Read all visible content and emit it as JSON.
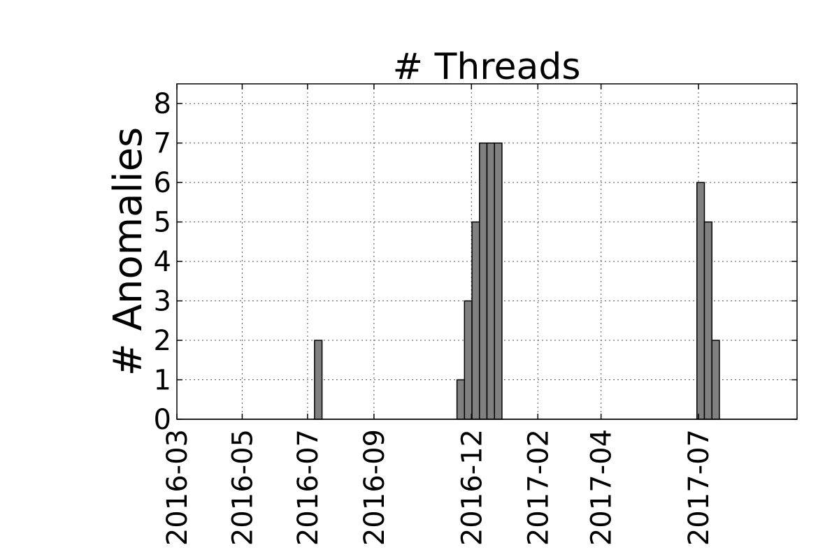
{
  "chart_data": {
    "type": "bar",
    "title": "# Threads",
    "xlabel": "",
    "ylabel": "# Anomalies",
    "xlim": [
      "2016-03-01",
      "2017-10-01"
    ],
    "ylim": [
      0,
      8.5
    ],
    "yticks": [
      0,
      1,
      2,
      3,
      4,
      5,
      6,
      7,
      8
    ],
    "xticks": [
      "2016-03",
      "2016-05",
      "2016-07",
      "2016-09",
      "2016-12",
      "2017-02",
      "2017-04",
      "2017-07"
    ],
    "grid": true,
    "bar_color": "#808080",
    "bar_width_days": 7,
    "series": [
      {
        "x": [
          "2016-07-11",
          "2016-11-21",
          "2016-11-28",
          "2016-12-05",
          "2016-12-12",
          "2016-12-19",
          "2016-12-26",
          "2017-07-03",
          "2017-07-10",
          "2017-07-17"
        ],
        "values": [
          2,
          1,
          3,
          5,
          7,
          7,
          7,
          6,
          5,
          2
        ]
      }
    ]
  }
}
